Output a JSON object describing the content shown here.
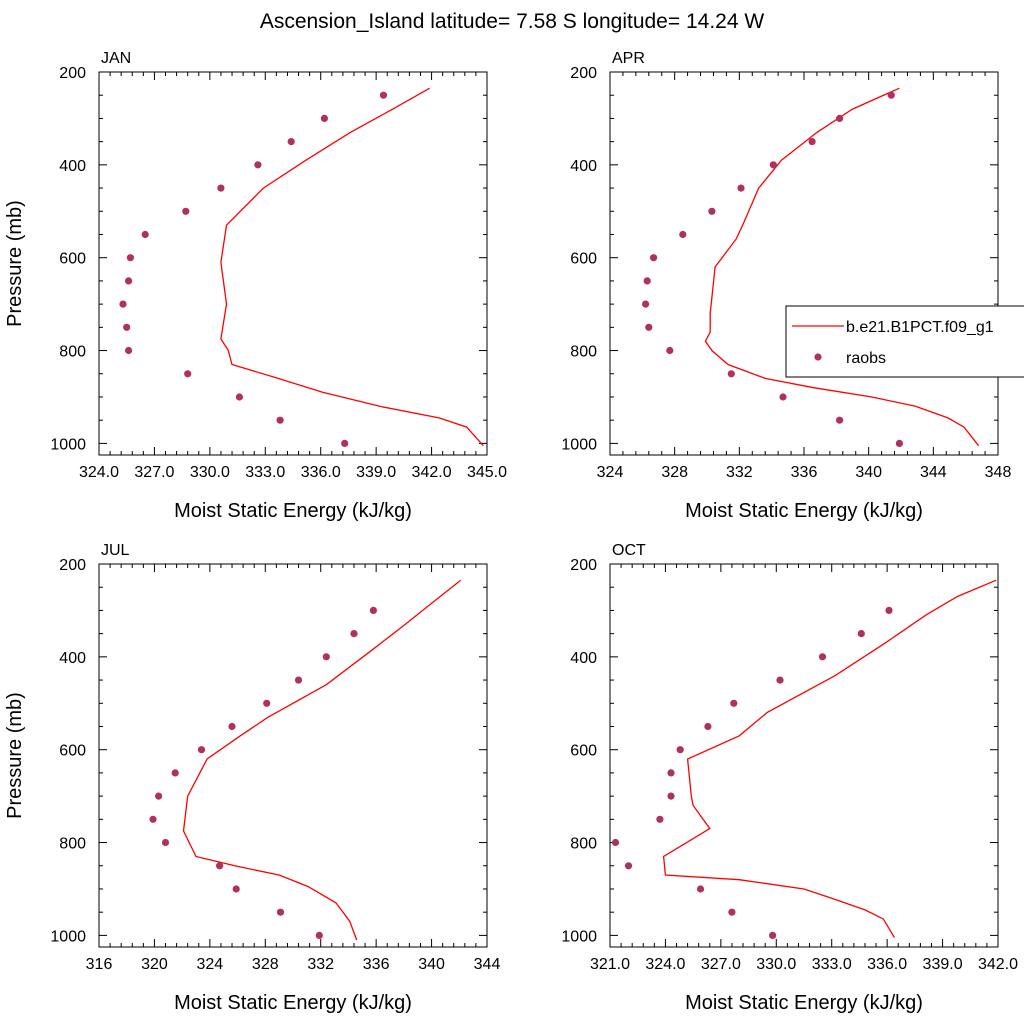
{
  "title": "Ascension_Island  latitude= 7.58 S longitude= 14.24 W",
  "legend": {
    "placement": "right of APR panel (overflowing right edge)",
    "model_label": "b.e21.B1PCT.f09_g1",
    "obs_label": "raobs"
  },
  "colors": {
    "model": "#ff0000",
    "obs": "#b03060"
  },
  "chart_data": [
    {
      "type": "line",
      "title": "JAN",
      "xlabel": "Moist Static Energy (kJ/kg)",
      "ylabel": "Pressure (mb)",
      "xlim": [
        324.0,
        345.0
      ],
      "ylim": [
        200,
        1025
      ],
      "y_inverted": true,
      "xticks": [
        "324.0",
        "327.0",
        "330.0",
        "333.0",
        "336.0",
        "339.0",
        "342.0",
        "345.0"
      ],
      "yticks": [
        "200",
        "400",
        "600",
        "800",
        "1000"
      ],
      "series": [
        {
          "name": "b.e21.B1PCT.f09_g1",
          "kind": "line",
          "x": [
            341.9,
            339.9,
            337.6,
            335.2,
            332.9,
            330.9,
            330.6,
            330.9,
            330.6,
            331.0,
            331.2,
            333.7,
            336.1,
            339.2,
            342.4,
            343.9,
            344.8
          ],
          "y": [
            235,
            280,
            330,
            390,
            450,
            530,
            610,
            700,
            775,
            800,
            830,
            860,
            890,
            920,
            945,
            965,
            1005
          ]
        },
        {
          "name": "raobs",
          "kind": "scatter",
          "x": [
            339.4,
            336.2,
            334.4,
            332.6,
            330.6,
            328.7,
            326.5,
            325.7,
            325.6,
            325.3,
            325.5,
            325.6,
            328.8,
            331.6,
            333.8,
            337.3
          ],
          "y": [
            250,
            300,
            350,
            400,
            450,
            500,
            550,
            600,
            650,
            700,
            750,
            800,
            850,
            900,
            950,
            1000
          ]
        }
      ]
    },
    {
      "type": "line",
      "title": "APR",
      "xlabel": "Moist Static Energy (kJ/kg)",
      "ylabel": "",
      "xlim": [
        324,
        348
      ],
      "ylim": [
        200,
        1025
      ],
      "y_inverted": true,
      "xticks": [
        "324",
        "328",
        "332",
        "336",
        "340",
        "344",
        "348"
      ],
      "yticks": [
        "200",
        "400",
        "600",
        "800",
        "1000"
      ],
      "series": [
        {
          "name": "b.e21.B1PCT.f09_g1",
          "kind": "line",
          "x": [
            341.9,
            339.0,
            336.8,
            334.6,
            333.2,
            332.2,
            331.8,
            330.5,
            330.2,
            330.2,
            329.9,
            330.3,
            331.3,
            333.6,
            336.6,
            340.2,
            342.9,
            344.9,
            345.9,
            346.8
          ],
          "y": [
            235,
            280,
            330,
            390,
            450,
            530,
            560,
            620,
            720,
            760,
            780,
            800,
            830,
            860,
            880,
            900,
            920,
            945,
            965,
            1005
          ]
        },
        {
          "name": "raobs",
          "kind": "scatter",
          "x": [
            341.4,
            338.2,
            336.5,
            334.1,
            332.1,
            330.3,
            328.5,
            326.7,
            326.3,
            326.2,
            326.4,
            327.7,
            331.5,
            334.7,
            338.2,
            341.9
          ],
          "y": [
            250,
            300,
            350,
            400,
            450,
            500,
            550,
            600,
            650,
            700,
            750,
            800,
            850,
            900,
            950,
            1000
          ]
        }
      ]
    },
    {
      "type": "line",
      "title": "JUL",
      "xlabel": "Moist Static Energy (kJ/kg)",
      "ylabel": "Pressure (mb)",
      "xlim": [
        316,
        344
      ],
      "ylim": [
        200,
        1025
      ],
      "y_inverted": true,
      "xticks": [
        "316",
        "320",
        "324",
        "328",
        "332",
        "336",
        "340",
        "344"
      ],
      "yticks": [
        "200",
        "400",
        "600",
        "800",
        "1000"
      ],
      "series": [
        {
          "name": "b.e21.B1PCT.f09_g1",
          "kind": "line",
          "x": [
            342.1,
            340.2,
            338.1,
            335.5,
            332.4,
            328.2,
            326.2,
            323.8,
            322.4,
            322.1,
            323.0,
            325.8,
            329.0,
            331.1,
            333.1,
            334.1,
            334.6
          ],
          "y": [
            235,
            280,
            330,
            390,
            460,
            530,
            570,
            620,
            700,
            775,
            830,
            850,
            870,
            895,
            930,
            970,
            1010
          ]
        },
        {
          "name": "raobs",
          "kind": "scatter",
          "x": [
            335.8,
            334.4,
            332.4,
            330.4,
            328.1,
            325.6,
            323.4,
            321.5,
            320.3,
            319.9,
            320.8,
            324.7,
            325.9,
            329.1,
            331.9
          ],
          "y": [
            300,
            350,
            400,
            450,
            500,
            550,
            600,
            650,
            700,
            750,
            800,
            850,
            900,
            950,
            1000
          ]
        }
      ]
    },
    {
      "type": "line",
      "title": "OCT",
      "xlabel": "Moist Static Energy (kJ/kg)",
      "ylabel": "",
      "xlim": [
        321.0,
        342.0
      ],
      "ylim": [
        200,
        1025
      ],
      "y_inverted": true,
      "xticks": [
        "321.0",
        "324.0",
        "327.0",
        "330.0",
        "333.0",
        "336.0",
        "339.0",
        "342.0"
      ],
      "yticks": [
        "200",
        "400",
        "600",
        "800",
        "1000"
      ],
      "series": [
        {
          "name": "b.e21.B1PCT.f09_g1",
          "kind": "line",
          "x": [
            341.9,
            339.8,
            338.1,
            335.9,
            333.2,
            329.5,
            328.0,
            325.2,
            325.4,
            325.5,
            326.4,
            323.9,
            324.0,
            328.0,
            331.5,
            333.0,
            334.8,
            335.8,
            336.4
          ],
          "y": [
            235,
            270,
            310,
            370,
            440,
            520,
            570,
            620,
            700,
            720,
            770,
            830,
            870,
            880,
            900,
            920,
            945,
            965,
            1005
          ]
        },
        {
          "name": "raobs",
          "kind": "scatter",
          "x": [
            336.1,
            334.6,
            332.5,
            330.2,
            327.7,
            326.3,
            324.8,
            324.3,
            324.3,
            323.7,
            321.3,
            322.0,
            325.9,
            327.6,
            329.8
          ],
          "y": [
            300,
            350,
            400,
            450,
            500,
            550,
            600,
            650,
            700,
            750,
            800,
            850,
            900,
            950,
            1000
          ]
        }
      ]
    }
  ]
}
